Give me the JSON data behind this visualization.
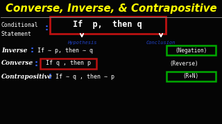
{
  "title": "Converse, Inverse, & Contrapositive",
  "title_color": "#FFFF00",
  "bg_color": "#050505",
  "white": "#FFFFFF",
  "cyan_blue": "#4466FF",
  "blue_label": "#3355EE",
  "green_box": "#00AA00",
  "red_box": "#BB1111",
  "colon_color": "#3366FF",
  "hypothesis_color": "#2244CC",
  "conclusion_color": "#2244CC",
  "divider_color": "#888888",
  "cond_label": "Conditional\nStatement",
  "cond_text": "If  p,  then q",
  "hypothesis": "Hypothesis",
  "conclusion": "Conclusion",
  "rows": [
    {
      "label": "Inverse",
      "text": "If ∼ p, then ∼ q",
      "has_red_box": false,
      "tag": "(Negation)",
      "tag_green_box": true
    },
    {
      "label": "Converse",
      "text": "If q , then p",
      "has_red_box": true,
      "tag": "(Reverse)",
      "tag_green_box": false
    },
    {
      "label": "Contrapositive",
      "text": "If ∼ q , then ∼ p",
      "has_red_box": false,
      "tag": "(R+N)",
      "tag_green_box": true
    }
  ]
}
